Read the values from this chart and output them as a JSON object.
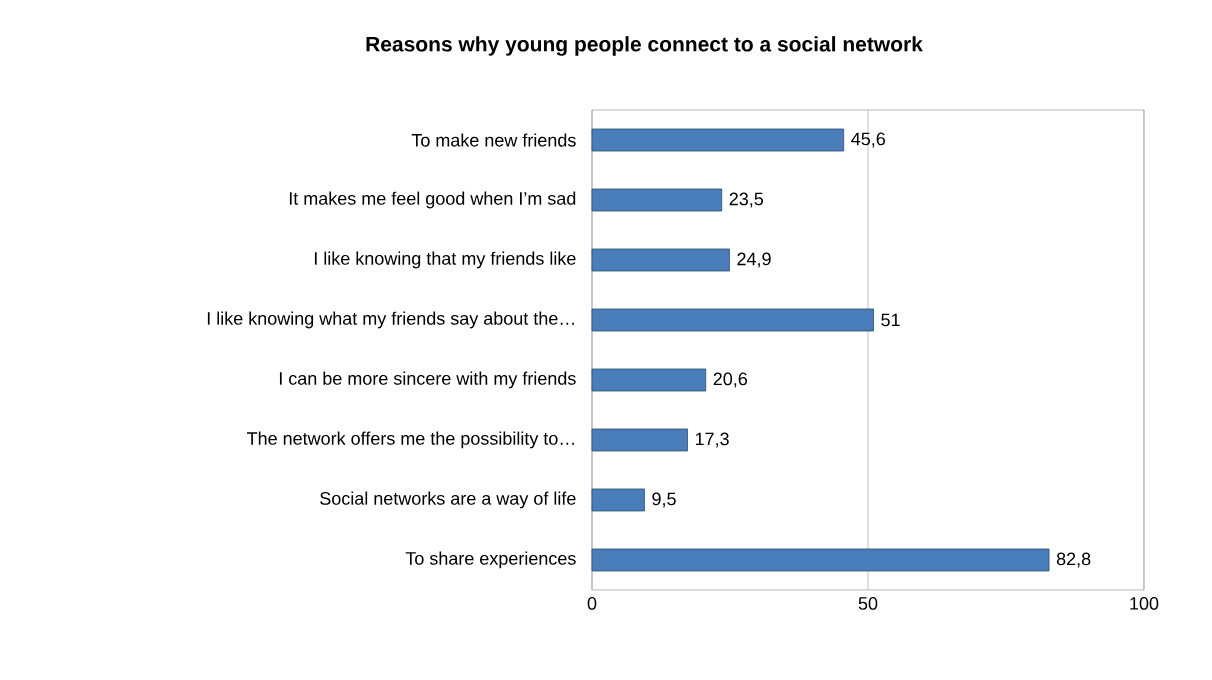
{
  "chart_data": {
    "type": "bar",
    "orientation": "horizontal",
    "title": "Reasons why young people connect to a social network",
    "categories": [
      "To make new friends",
      "It makes me feel good when I’m sad",
      "I like knowing that my friends like",
      "I like knowing what my friends say about the…",
      "I can be more sincere with my friends",
      "The network offers me the possibility to…",
      "Social networks are a way of life",
      "To share experiences"
    ],
    "values": [
      45.6,
      23.5,
      24.9,
      51,
      20.6,
      17.3,
      9.5,
      82.8
    ],
    "value_labels": [
      "45,6",
      "23,5",
      "24,9",
      "51",
      "20,6",
      "17,3",
      "9,5",
      "82,8"
    ],
    "color": "#4a7ebb",
    "xlim": [
      0,
      100
    ],
    "xticks": [
      0,
      50,
      100
    ],
    "grid": "x"
  }
}
